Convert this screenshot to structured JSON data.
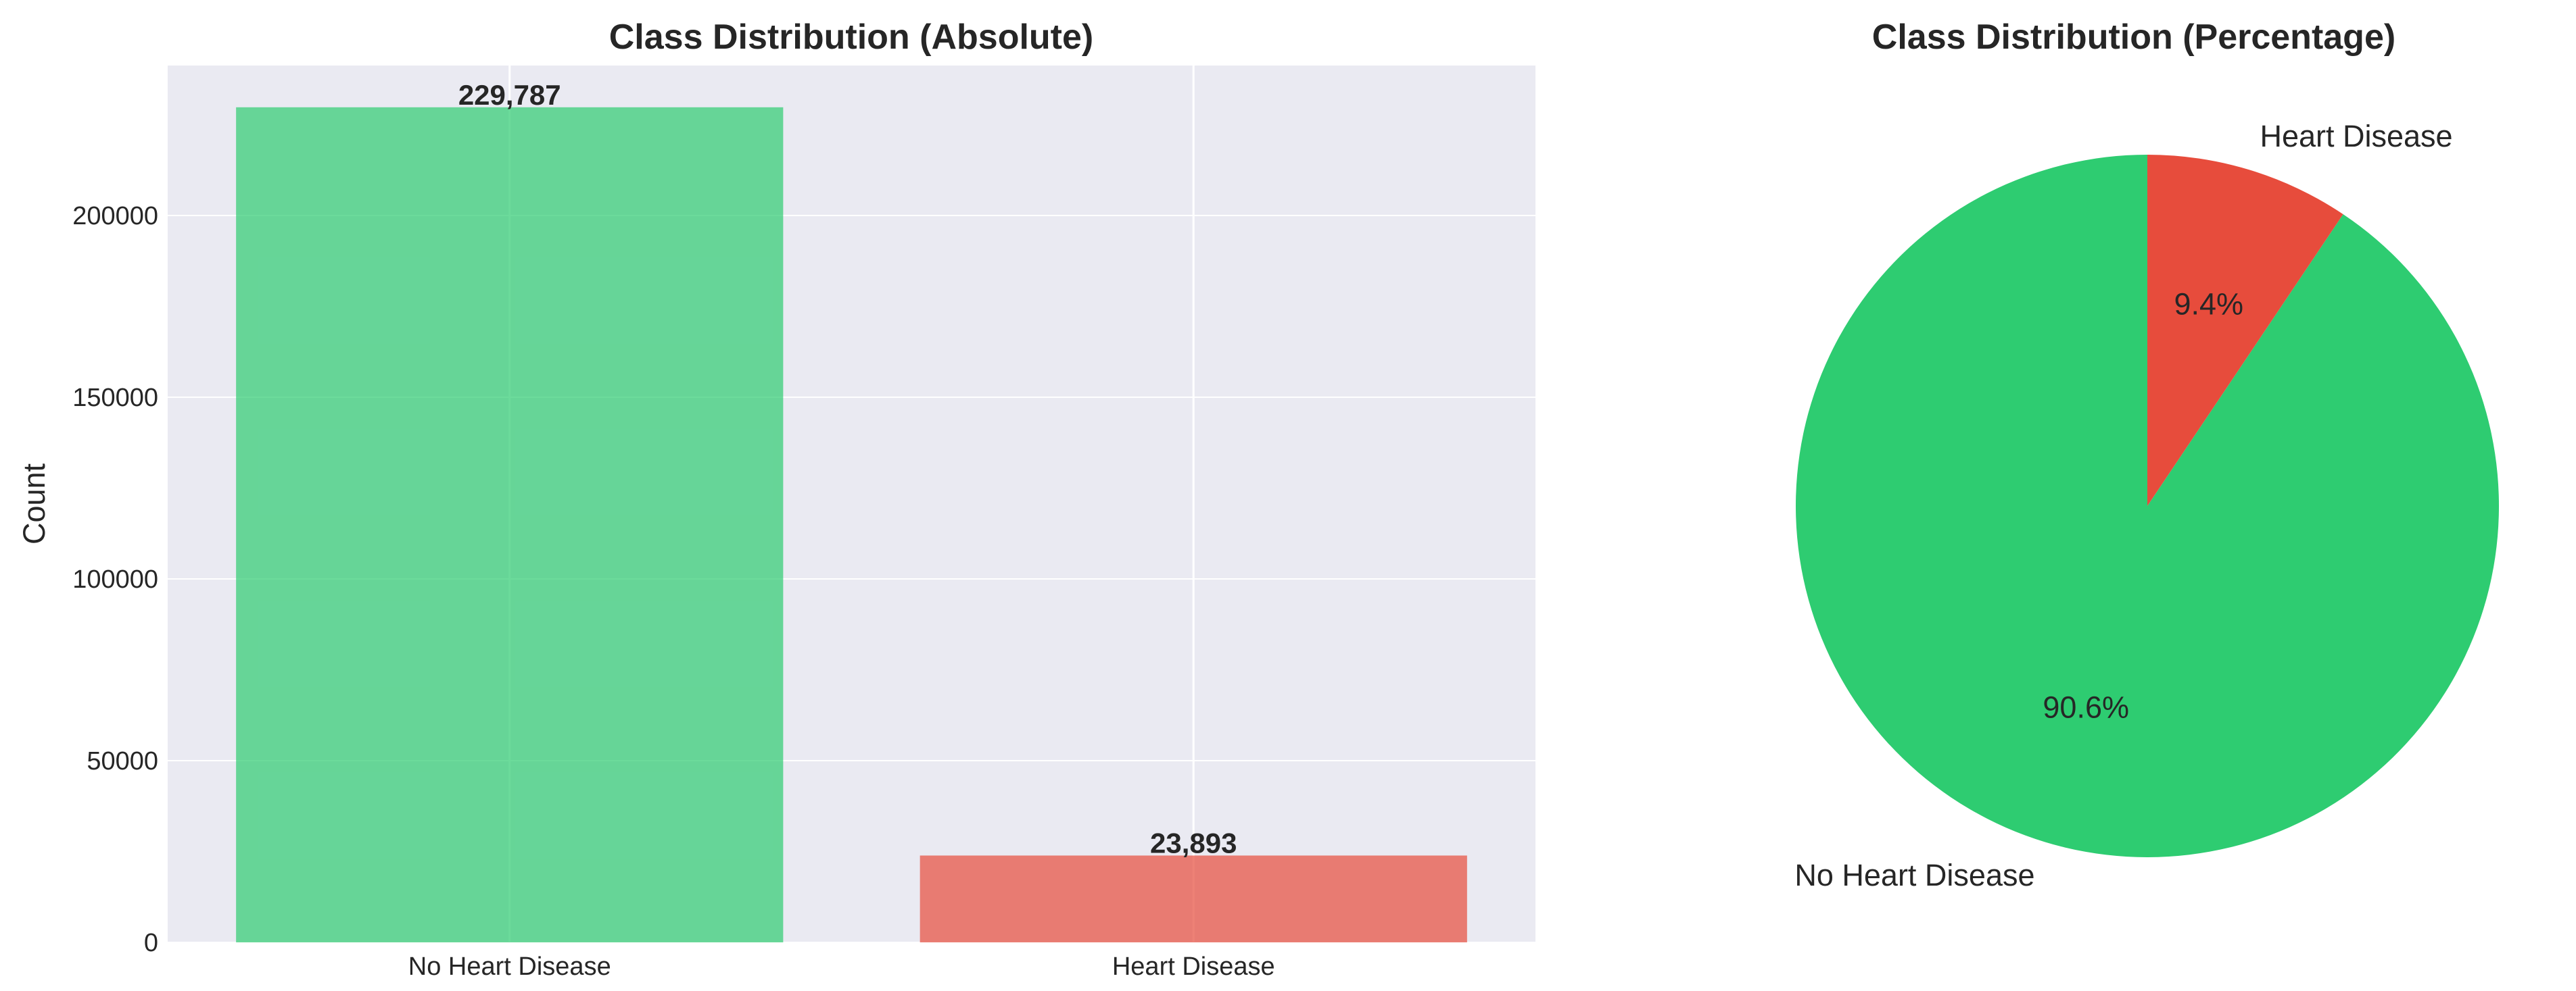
{
  "chart_data": [
    {
      "type": "bar",
      "title": "Class Distribution (Absolute)",
      "xlabel": "",
      "ylabel": "Count",
      "categories": [
        "No Heart Disease",
        "Heart Disease"
      ],
      "values": [
        229787,
        23893
      ],
      "value_labels": [
        "229,787",
        "23,893"
      ],
      "colors": [
        "#2ecc71",
        "#e74c3c"
      ],
      "ylim": [
        0,
        241276
      ],
      "yticks": [
        0,
        50000,
        100000,
        150000,
        200000
      ],
      "ytick_labels": [
        "0",
        "50000",
        "100000",
        "150000",
        "200000"
      ],
      "grid": true
    },
    {
      "type": "pie",
      "title": "Class Distribution (Percentage)",
      "labels": [
        "No Heart Disease",
        "Heart Disease"
      ],
      "values": [
        90.6,
        9.4
      ],
      "pct_labels": [
        "90.6%",
        "9.4%"
      ],
      "colors": [
        "#2ecc71",
        "#e74c3c"
      ],
      "start_angle_deg": 90
    }
  ]
}
